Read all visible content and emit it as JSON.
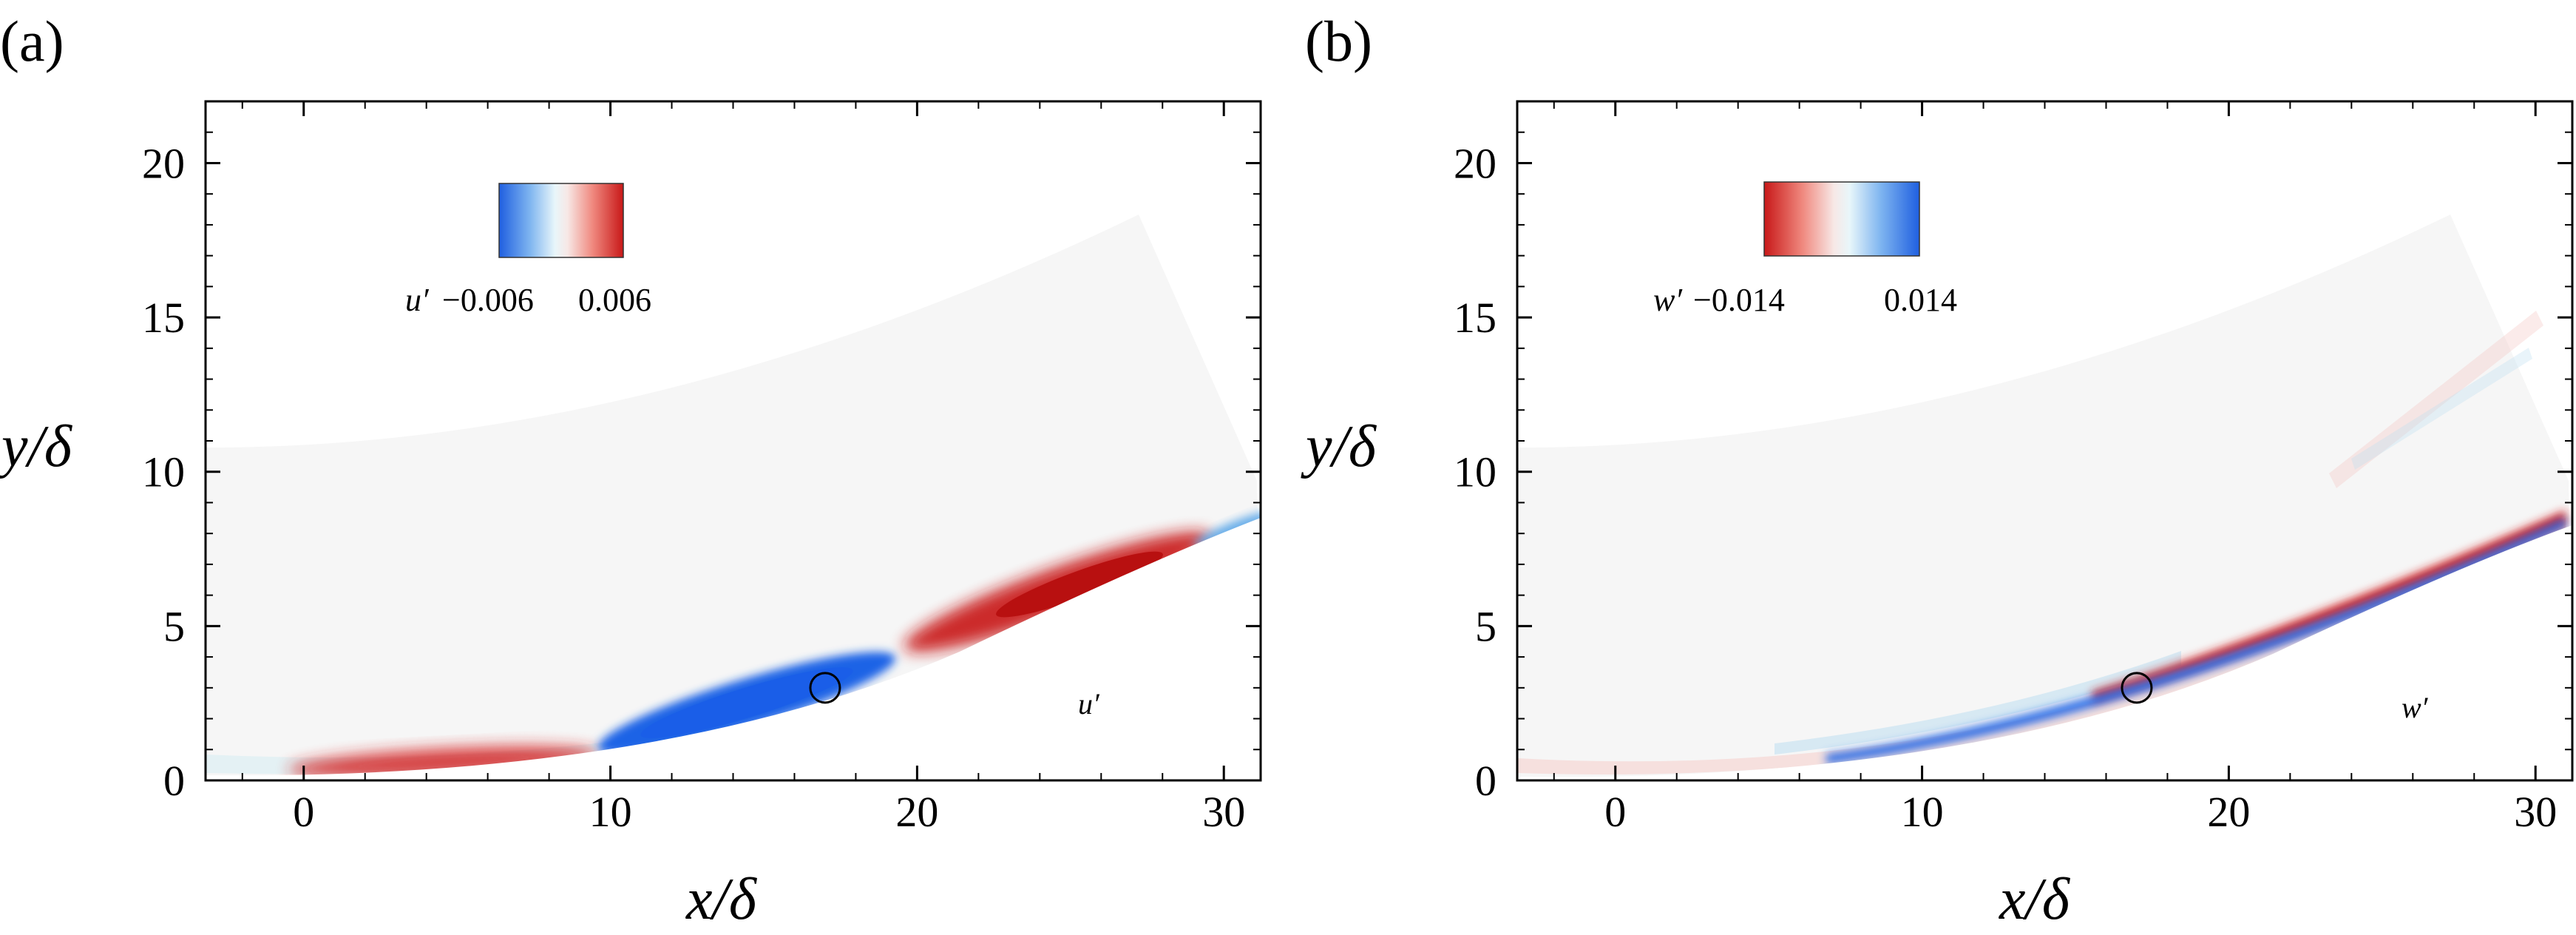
{
  "chart_data": [
    {
      "type": "heatmap",
      "panel": "(a)",
      "field": "u′",
      "xlabel": "x/δ",
      "ylabel": "y/δ",
      "xlim": [
        -3.2,
        31.2
      ],
      "ylim": [
        0,
        22
      ],
      "xticks": [
        0,
        10,
        20,
        30
      ],
      "yticks": [
        0,
        5,
        10,
        15,
        20
      ],
      "colorbar": {
        "label": "u′",
        "min_label": "−0.006",
        "max_label": "0.006",
        "colors": [
          "#1f5fe0",
          "#7fb5f0",
          "#e8f6fa",
          "#f7e8e6",
          "#f08a80",
          "#c81818"
        ]
      },
      "marker": {
        "shape": "circle",
        "x": 17,
        "y": 3
      },
      "annotation": "u′",
      "structures": [
        {
          "sign": "positive",
          "color": "#d42020",
          "x_range": [
            2,
            9
          ],
          "y_center": 0.5
        },
        {
          "sign": "negative",
          "color": "#1e63e6",
          "x_range": [
            10,
            19
          ],
          "y_center": 2.8
        },
        {
          "sign": "positive",
          "color": "#c81818",
          "x_range": [
            21,
            30
          ],
          "y_center": 6.4
        },
        {
          "sign": "negative",
          "color": "#58a6e8",
          "x_range": [
            29,
            31
          ],
          "y_center": 8.0
        }
      ]
    },
    {
      "type": "heatmap",
      "panel": "(b)",
      "field": "w′",
      "xlabel": "x/δ",
      "ylabel": "y/δ",
      "xlim": [
        -3.2,
        31.2
      ],
      "ylim": [
        0,
        22
      ],
      "xticks": [
        0,
        10,
        20,
        30
      ],
      "yticks": [
        0,
        5,
        10,
        15,
        20
      ],
      "colorbar": {
        "label": "w′",
        "min_label": "−0.014",
        "max_label": "0.014",
        "colors": [
          "#c81818",
          "#f08a80",
          "#f7e8e6",
          "#e8f6fa",
          "#7fb5f0",
          "#1f5fe0"
        ]
      },
      "marker": {
        "shape": "circle",
        "x": 17,
        "y": 3
      },
      "annotation": "w′",
      "structures": [
        {
          "sign": "negative",
          "color": "#d42020",
          "x_range": [
            14,
            31
          ],
          "y_center": 5.0
        },
        {
          "sign": "positive",
          "color": "#1e63e6",
          "x_range": [
            8,
            31
          ],
          "y_center": 4.2
        }
      ]
    }
  ]
}
